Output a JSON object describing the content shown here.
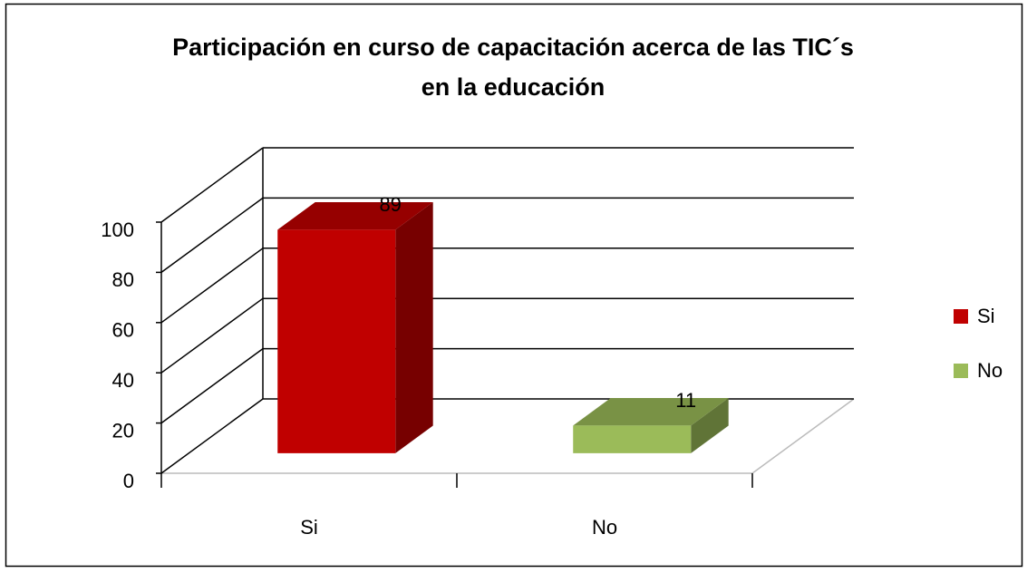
{
  "chart_data": {
    "type": "bar3d",
    "title": "Participación en curso de capacitación acerca de las TIC´s en la educación",
    "categories": [
      "Si",
      "No"
    ],
    "values": [
      89,
      11
    ],
    "colors": [
      "#c00000",
      "#9bbb59"
    ],
    "ylim": [
      0,
      100
    ],
    "yticks": [
      0,
      20,
      40,
      60,
      80,
      100
    ],
    "grid": true,
    "legend": "right"
  }
}
